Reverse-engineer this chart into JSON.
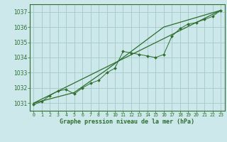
{
  "title": "Graphe pression niveau de la mer (hPa)",
  "background_color": "#cce8ea",
  "grid_color": "#aacccc",
  "line_color": "#2d6e2d",
  "xlim": [
    -0.5,
    23.5
  ],
  "ylim": [
    1030.5,
    1037.5
  ],
  "yticks": [
    1031,
    1032,
    1033,
    1034,
    1035,
    1036,
    1037
  ],
  "xticks": [
    0,
    1,
    2,
    3,
    4,
    5,
    6,
    7,
    8,
    9,
    10,
    11,
    12,
    13,
    14,
    15,
    16,
    17,
    18,
    19,
    20,
    21,
    22,
    23
  ],
  "measured": {
    "x": [
      0,
      1,
      2,
      3,
      4,
      5,
      6,
      7,
      8,
      9,
      10,
      11,
      12,
      13,
      14,
      15,
      16,
      17,
      18,
      19,
      20,
      21,
      22,
      23
    ],
    "y": [
      1030.9,
      1031.1,
      1031.5,
      1031.8,
      1031.9,
      1031.6,
      1032.0,
      1032.3,
      1032.5,
      1033.0,
      1033.3,
      1034.4,
      1034.3,
      1034.2,
      1034.1,
      1034.0,
      1034.2,
      1035.4,
      1035.9,
      1036.2,
      1036.3,
      1036.5,
      1036.7,
      1037.1
    ]
  },
  "trend_straight": {
    "x": [
      0,
      23
    ],
    "y": [
      1031.0,
      1037.1
    ]
  },
  "trend_smooth": {
    "x": [
      0,
      5,
      9,
      16,
      23
    ],
    "y": [
      1031.0,
      1031.7,
      1033.2,
      1036.0,
      1037.1
    ]
  }
}
